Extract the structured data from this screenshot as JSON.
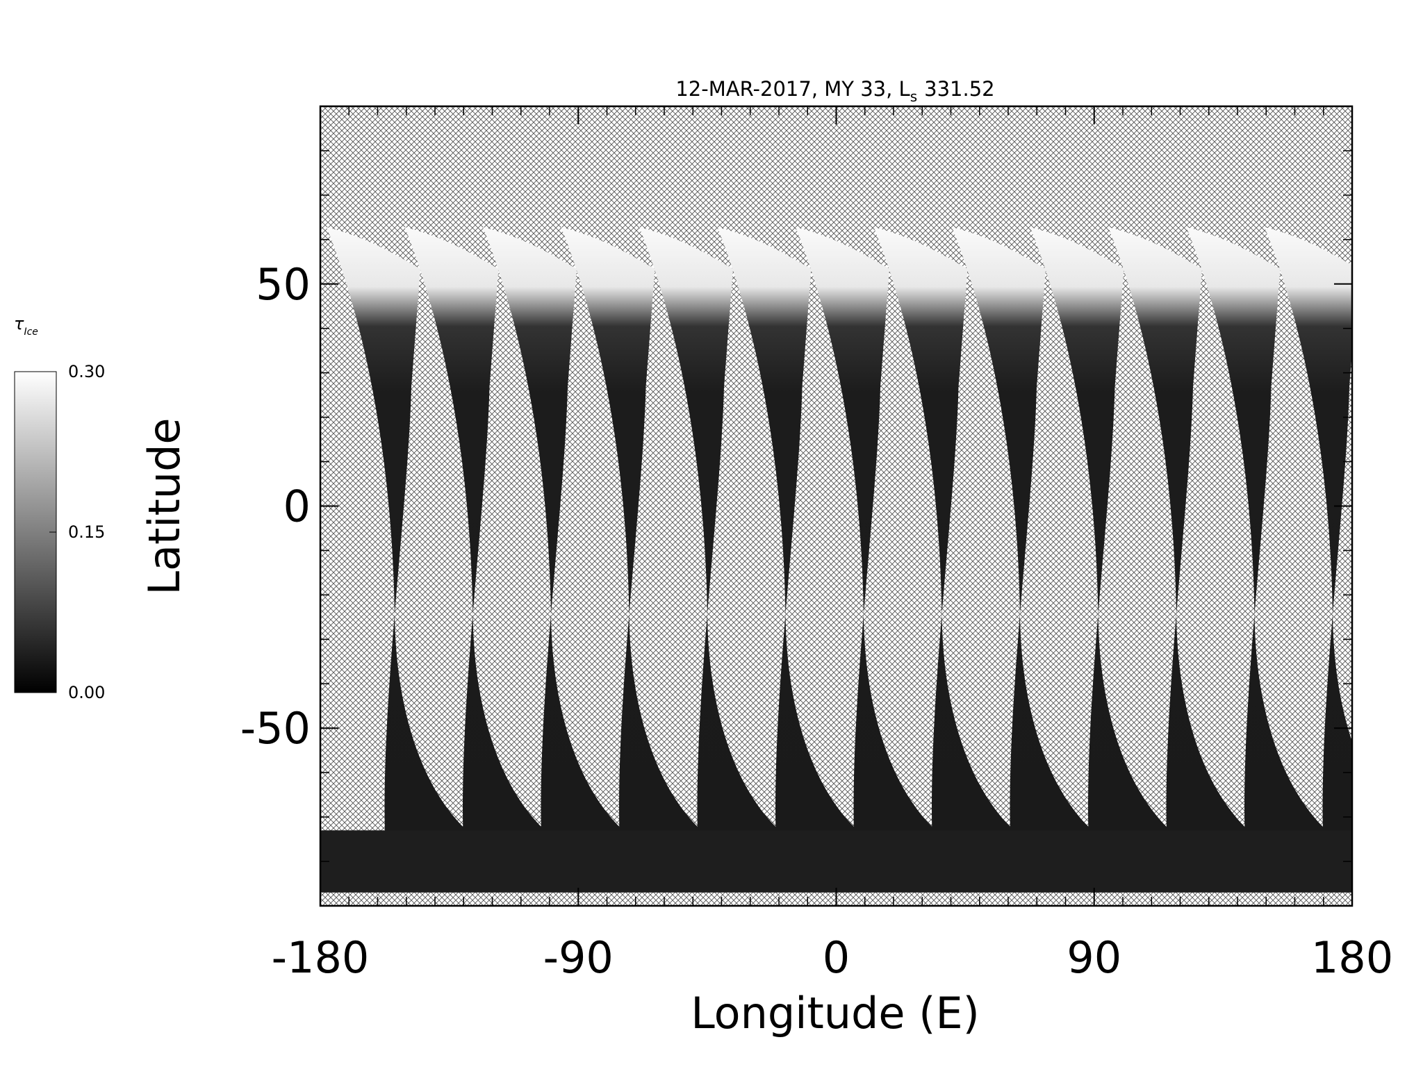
{
  "chart_data": {
    "type": "map",
    "title": {
      "prefix": "12-MAR-2017, MY 33,  L",
      "subscript": "s",
      "suffix": "331.52"
    },
    "x_label": "Longitude (E)",
    "y_label": "Latitude",
    "xlim": [
      -180,
      180
    ],
    "xticks": [
      -180,
      -90,
      0,
      90,
      180
    ],
    "ylim": [
      -90,
      90
    ],
    "yticks": [
      -50,
      0,
      50
    ],
    "colorbar": {
      "label": "τ",
      "label_subscript": "Ice",
      "lim": [
        0,
        0.3
      ],
      "ticks": [
        {
          "value": 0,
          "label": "0.00"
        },
        {
          "value": 0.15,
          "label": "0.15"
        },
        {
          "value": 0.3,
          "label": "0.30"
        }
      ],
      "colors": [
        "#000000",
        "#ffffff"
      ]
    }
  }
}
